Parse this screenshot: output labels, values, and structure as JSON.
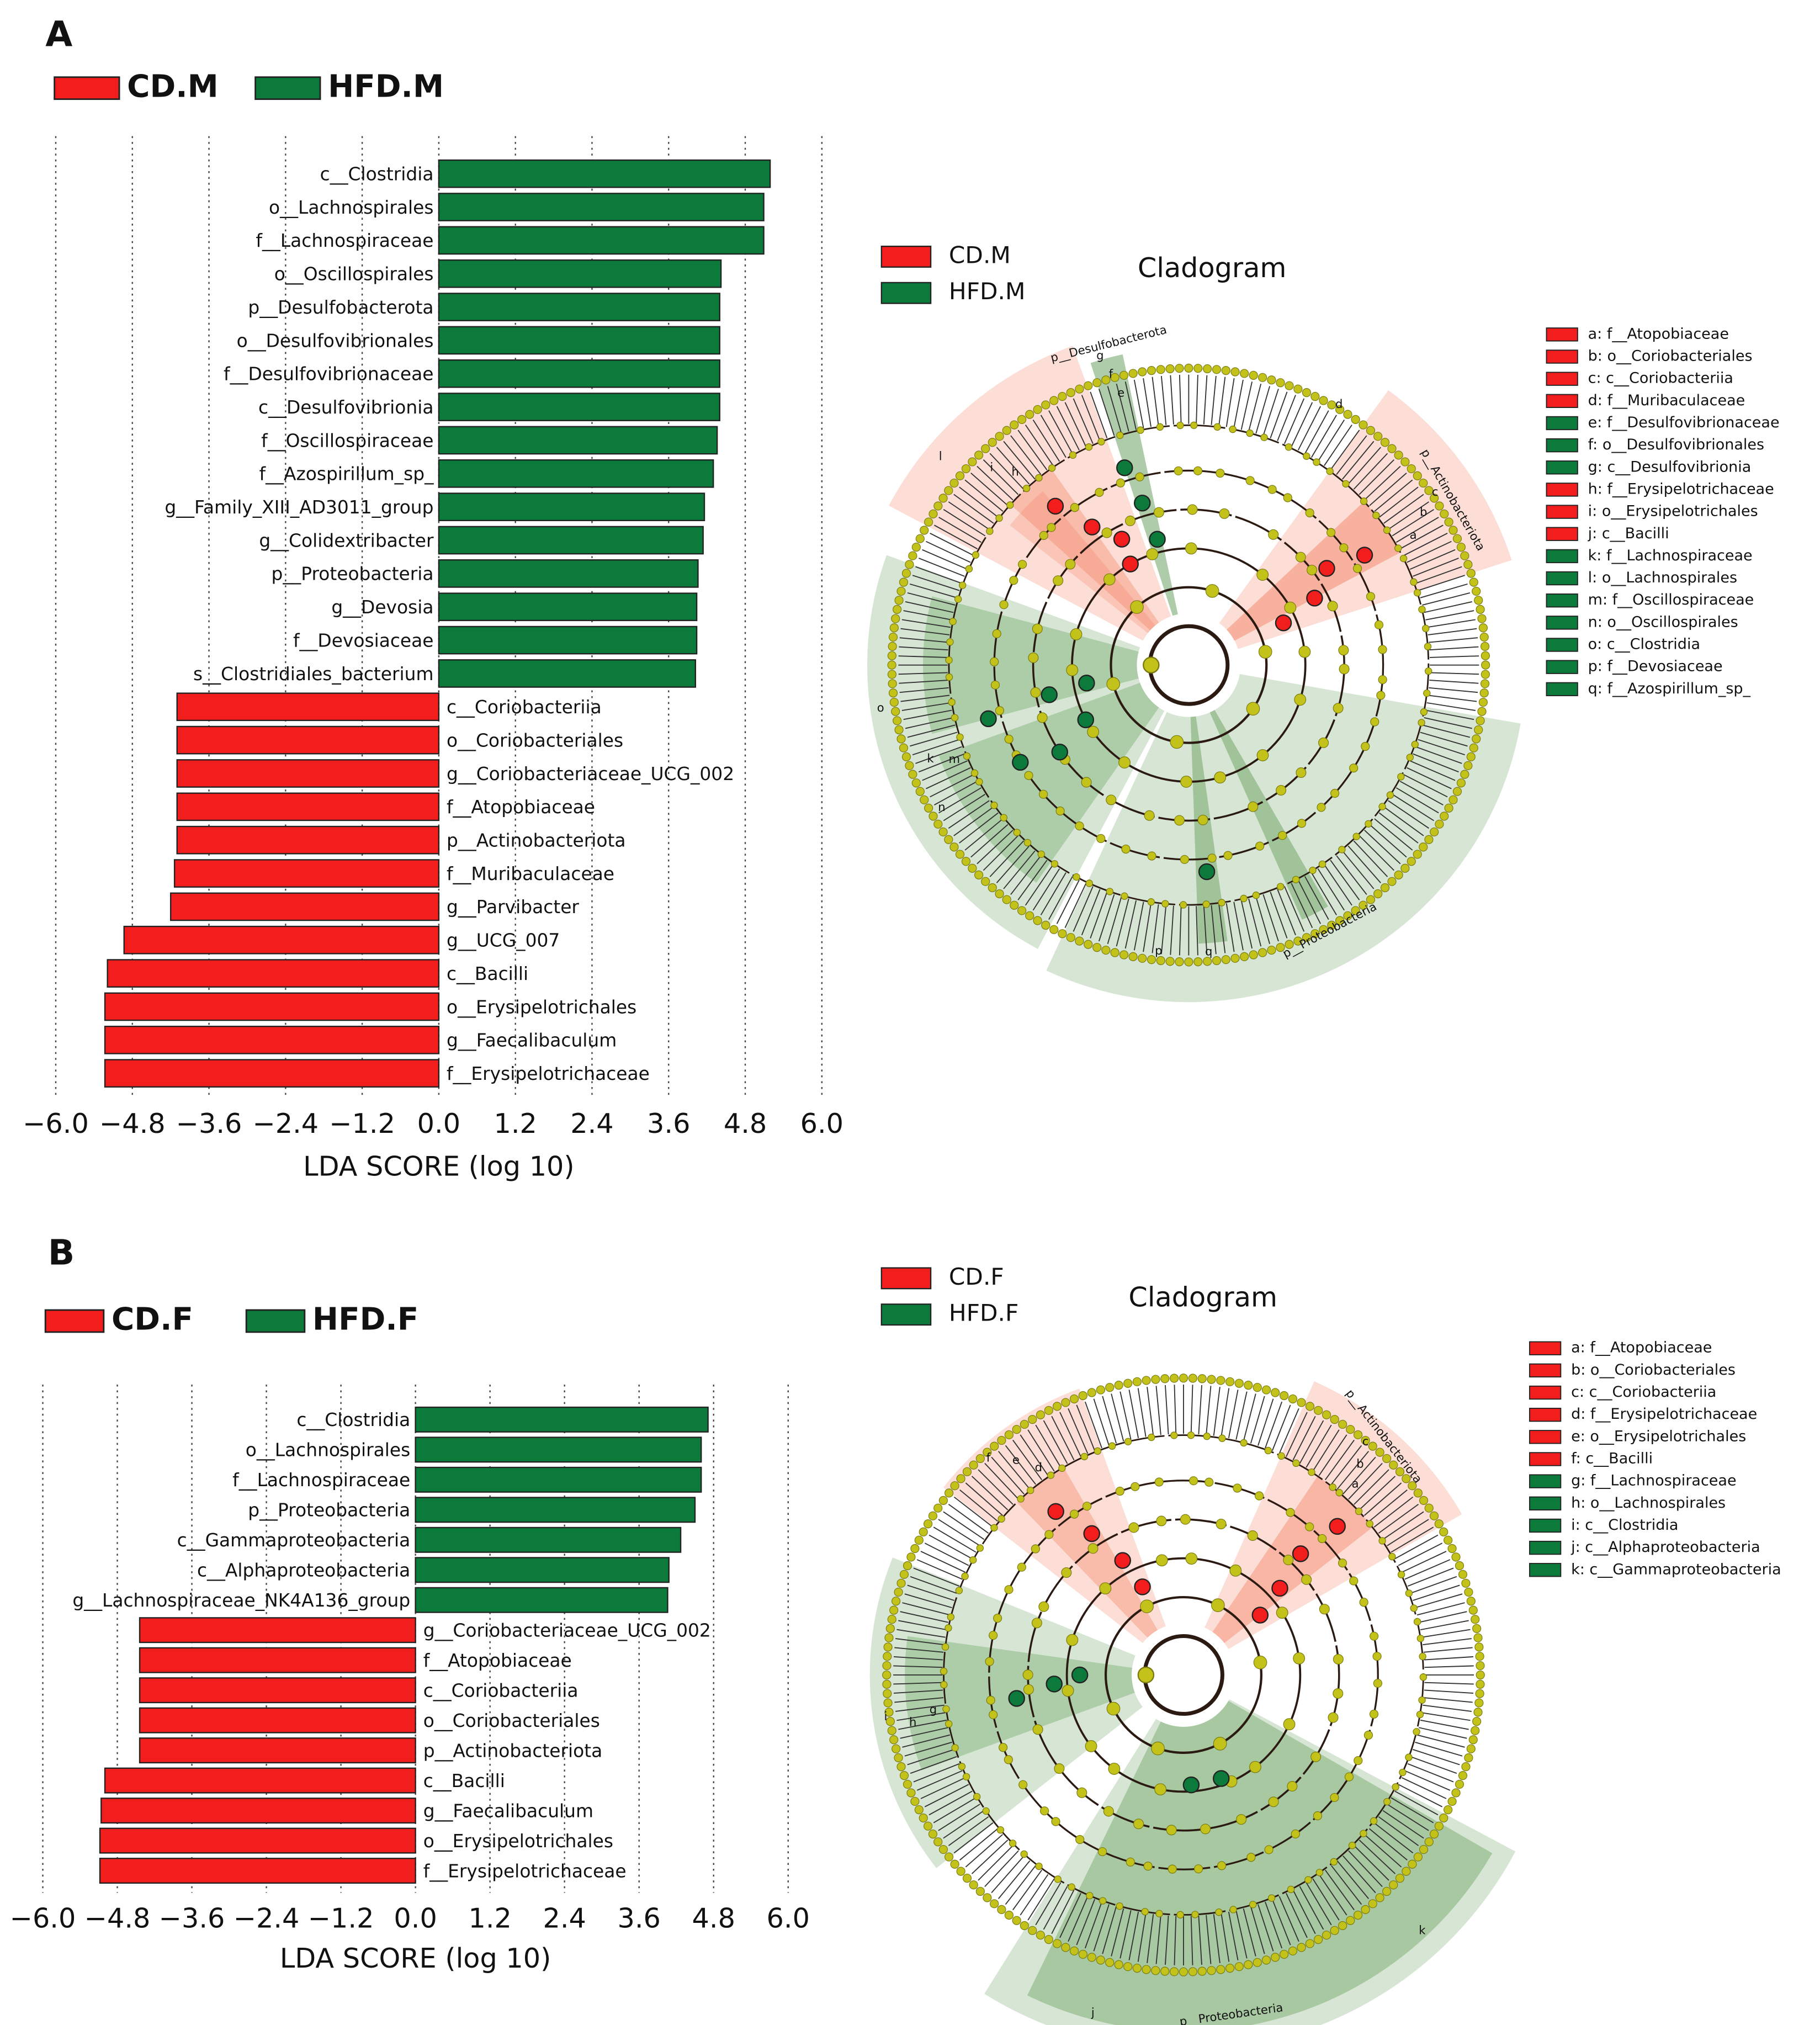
{
  "chart_data": [
    {
      "type": "bar",
      "panel": "A",
      "xlabel": "LDA SCORE (log 10)",
      "legend": [
        {
          "name": "CD.M",
          "color": "#f21d1d"
        },
        {
          "name": "HFD.M",
          "color": "#0b7a3b"
        }
      ],
      "categories": [
        "c__Clostridia",
        "o__Lachnospirales",
        "f__Lachnospiraceae",
        "o__Oscillospirales",
        "p__Desulfobacterota",
        "o__Desulfovibrionales",
        "f__Desulfovibrionaceae",
        "c__Desulfovibrionia",
        "f__Oscillospiraceae",
        "f__Azospirillum_sp_",
        "g__Family_XIII_AD3011_group",
        "g__Colidextribacter",
        "p__Proteobacteria",
        "g__Devosia",
        "f__Devosiaceae",
        "s__Clostridiales_bacterium",
        "c__Coriobacteriia",
        "o__Coriobacteriales",
        "g__Coriobacteriaceae_UCG_002",
        "f__Atopobiaceae",
        "p__Actinobacteriota",
        "f__Muribaculaceae",
        "g__Parvibacter",
        "g__UCG_007",
        "c__Bacilli",
        "o__Erysipelotrichales",
        "g__Faecalibaculum",
        "f__Erysipelotrichaceae"
      ],
      "values": [
        5.19,
        5.09,
        5.09,
        4.42,
        4.4,
        4.4,
        4.4,
        4.4,
        4.36,
        4.3,
        4.16,
        4.14,
        4.06,
        4.04,
        4.04,
        4.02,
        -4.1,
        -4.1,
        -4.1,
        -4.1,
        -4.1,
        -4.14,
        -4.2,
        -4.93,
        -5.19,
        -5.23,
        -5.23,
        -5.23
      ],
      "xlim": [
        -6,
        6
      ],
      "xticks": [
        {
          "value": -6,
          "label": "−6.0"
        },
        {
          "value": -4.8,
          "label": "−4.8"
        },
        {
          "value": -3.6,
          "label": "−3.6"
        },
        {
          "value": -2.4,
          "label": "−2.4"
        },
        {
          "value": -1.2,
          "label": "−1.2"
        },
        {
          "value": 0,
          "label": "0.0"
        },
        1.2,
        2.4,
        3.6,
        4.8,
        {
          "value": 6,
          "label": "6.0"
        }
      ],
      "grid": true
    },
    {
      "type": "cladogram",
      "title": "Cladogram",
      "legend": [
        {
          "name": "CD.M",
          "color": "#f21d1d"
        },
        {
          "name": "HFD.M",
          "color": "#0b7a3b"
        }
      ],
      "phylum_labels": [
        "p__Desulfobacterota",
        "p__Actinobacteriota",
        "p__Proteobacteria"
      ],
      "node_labels": [
        "g",
        "f",
        "e",
        "l",
        "i",
        "h",
        "d",
        "c",
        "b",
        "a",
        "k",
        "o",
        "m",
        "n",
        "p",
        "q"
      ],
      "key": [
        {
          "label": "a: f__Atopobiaceae",
          "color": "#f21d1d"
        },
        {
          "label": "b: o__Coriobacteriales",
          "color": "#f21d1d"
        },
        {
          "label": "c: c__Coriobacteriia",
          "color": "#f21d1d"
        },
        {
          "label": "d: f__Muribaculaceae",
          "color": "#f21d1d"
        },
        {
          "label": "e: f__Desulfovibrionaceae",
          "color": "#0b7a3b"
        },
        {
          "label": "f: o__Desulfovibrionales",
          "color": "#0b7a3b"
        },
        {
          "label": "g: c__Desulfovibrionia",
          "color": "#0b7a3b"
        },
        {
          "label": "h: f__Erysipelotrichaceae",
          "color": "#f21d1d"
        },
        {
          "label": "i: o__Erysipelotrichales",
          "color": "#f21d1d"
        },
        {
          "label": "j: c__Bacilli",
          "color": "#f21d1d"
        },
        {
          "label": "k: f__Lachnospiraceae",
          "color": "#0b7a3b"
        },
        {
          "label": "l: o__Lachnospirales",
          "color": "#0b7a3b"
        },
        {
          "label": "m: f__Oscillospiraceae",
          "color": "#0b7a3b"
        },
        {
          "label": "n: o__Oscillospirales",
          "color": "#0b7a3b"
        },
        {
          "label": "o: c__Clostridia",
          "color": "#0b7a3b"
        },
        {
          "label": "p: f__Devosiaceae",
          "color": "#0b7a3b"
        },
        {
          "label": "q: f__Azospirillum_sp_",
          "color": "#0b7a3b"
        }
      ]
    },
    {
      "type": "bar",
      "panel": "B",
      "xlabel": "LDA SCORE (log 10)",
      "legend": [
        {
          "name": "CD.F",
          "color": "#f21d1d"
        },
        {
          "name": "HFD.F",
          "color": "#0b7a3b"
        }
      ],
      "categories": [
        "c__Clostridia",
        "o__Lachnospirales",
        "f__Lachnospiraceae",
        "p__Proteobacteria",
        "c__Gammaproteobacteria",
        "c__Alphaproteobacteria",
        "g__Lachnospiraceae_NK4A136_group",
        "g__Coriobacteriaceae_UCG_002",
        "f__Atopobiaceae",
        "c__Coriobacteriia",
        "o__Coriobacteriales",
        "p__Actinobacteriota",
        "c__Bacilli",
        "g__Faecalibaculum",
        "o__Erysipelotrichales",
        "f__Erysipelotrichaceae"
      ],
      "values": [
        4.71,
        4.6,
        4.6,
        4.5,
        4.27,
        4.08,
        4.06,
        -4.44,
        -4.44,
        -4.44,
        -4.44,
        -4.44,
        -5.0,
        -5.06,
        -5.08,
        -5.08
      ],
      "xlim": [
        -6,
        6
      ],
      "xticks": [
        {
          "value": -6,
          "label": "−6.0"
        },
        {
          "value": -4.8,
          "label": "−4.8"
        },
        {
          "value": -3.6,
          "label": "−3.6"
        },
        {
          "value": -2.4,
          "label": "−2.4"
        },
        {
          "value": -1.2,
          "label": "−1.2"
        },
        {
          "value": 0,
          "label": "0.0"
        },
        1.2,
        2.4,
        3.6,
        4.8,
        {
          "value": 6,
          "label": "6.0"
        }
      ],
      "grid": true
    },
    {
      "type": "cladogram",
      "title": "Cladogram",
      "legend": [
        {
          "name": "CD.F",
          "color": "#f21d1d"
        },
        {
          "name": "HFD.F",
          "color": "#0b7a3b"
        }
      ],
      "phylum_labels": [
        "p__Actinobacteriota",
        "p__Proteobacteria"
      ],
      "node_labels": [
        "f",
        "e",
        "d",
        "c",
        "b",
        "a",
        "i",
        "h",
        "g",
        "k",
        "j"
      ],
      "key": [
        {
          "label": "a: f__Atopobiaceae",
          "color": "#f21d1d"
        },
        {
          "label": "b: o__Coriobacteriales",
          "color": "#f21d1d"
        },
        {
          "label": "c: c__Coriobacteriia",
          "color": "#f21d1d"
        },
        {
          "label": "d: f__Erysipelotrichaceae",
          "color": "#f21d1d"
        },
        {
          "label": "e: o__Erysipelotrichales",
          "color": "#f21d1d"
        },
        {
          "label": "f: c__Bacilli",
          "color": "#f21d1d"
        },
        {
          "label": "g: f__Lachnospiraceae",
          "color": "#0b7a3b"
        },
        {
          "label": "h: o__Lachnospirales",
          "color": "#0b7a3b"
        },
        {
          "label": "i: c__Clostridia",
          "color": "#0b7a3b"
        },
        {
          "label": "j: c__Alphaproteobacteria",
          "color": "#0b7a3b"
        },
        {
          "label": "k: c__Gammaproteobacteria",
          "color": "#0b7a3b"
        }
      ]
    }
  ]
}
